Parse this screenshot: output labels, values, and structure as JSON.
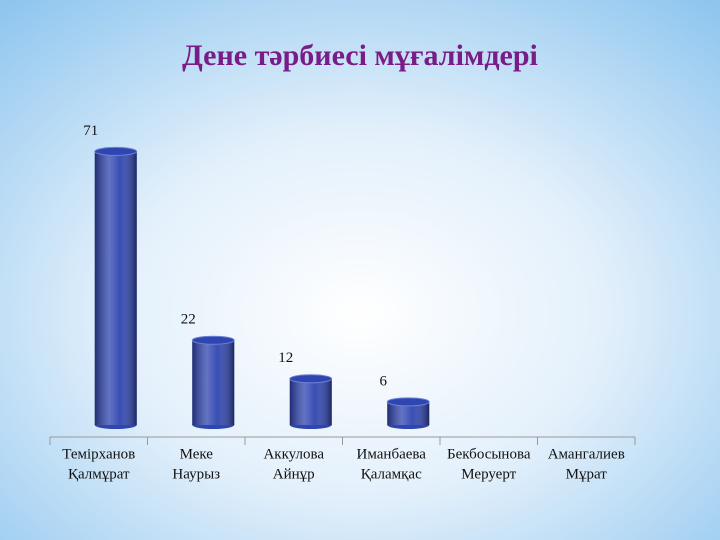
{
  "chart_data": {
    "type": "bar",
    "title": "Дене тәрбиесі мұғалімдері",
    "categories": [
      [
        "Темірханов",
        "Қалмұрат"
      ],
      [
        "Меке",
        "Наурыз"
      ],
      [
        "Аккулова",
        "Айнұр"
      ],
      [
        "Иманбаева",
        "Қаламқас"
      ],
      [
        "Бекбосынова",
        "Меруерт"
      ],
      [
        "Амангалиев",
        "Мұрат"
      ]
    ],
    "values": [
      71,
      22,
      12,
      6,
      null,
      null
    ],
    "color": "#2f45b0",
    "ylim": [
      0,
      75
    ]
  }
}
